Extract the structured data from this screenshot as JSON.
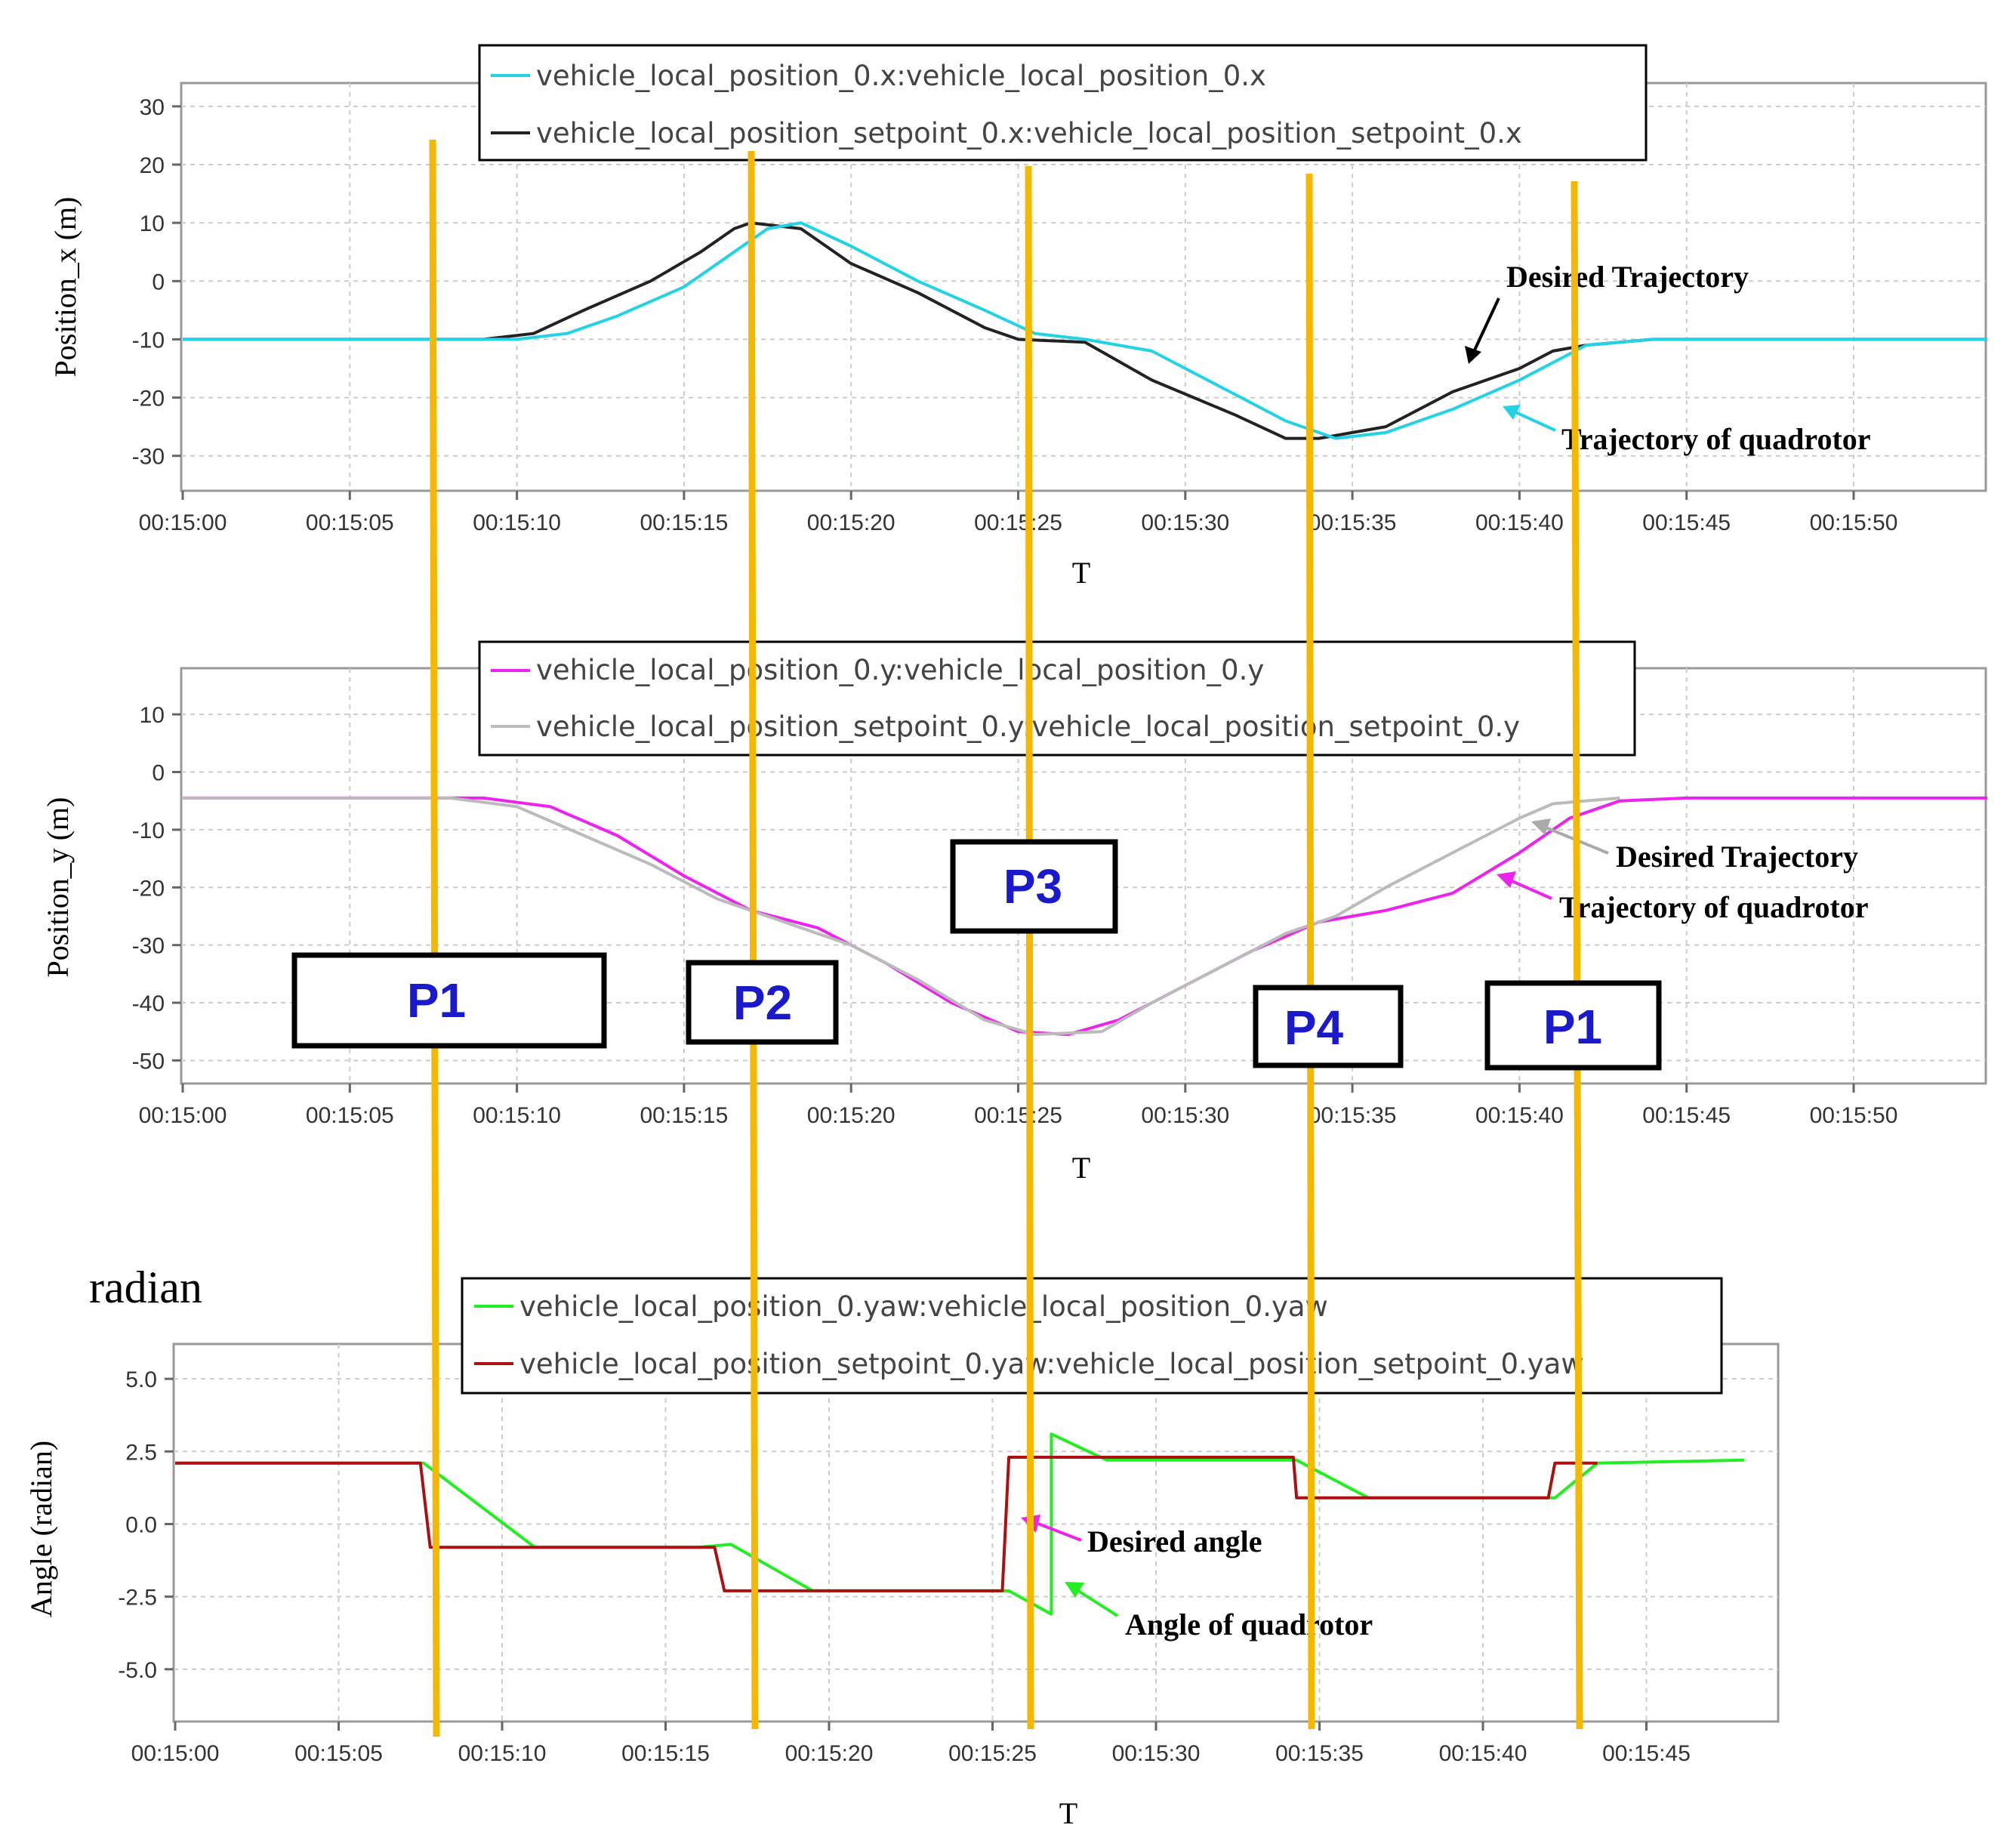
{
  "chart_data": [
    {
      "type": "line",
      "title": "",
      "xlabel": "T",
      "ylabel": "Position_x (m)",
      "ylim": [
        -36,
        34
      ],
      "xlim": [
        0,
        54
      ],
      "yticks": [
        30,
        20,
        10,
        0,
        -10,
        -20,
        -30
      ],
      "xtick_labels": [
        "00:15:00",
        "00:15:05",
        "00:15:10",
        "00:15:15",
        "00:15:20",
        "00:15:25",
        "00:15:30",
        "00:15:35",
        "00:15:40",
        "00:15:45",
        "00:15:50"
      ],
      "series": [
        {
          "name": "vehicle_local_position_setpoint_0.x:vehicle_local_position_setpoint_0.x",
          "color": "#222222",
          "x": [
            0,
            9,
            10.5,
            12,
            14,
            15.5,
            16.5,
            17,
            18.5,
            20,
            22,
            24,
            25,
            27,
            29,
            31.5,
            33,
            34,
            35,
            36,
            38,
            40,
            41,
            42,
            44,
            48,
            54
          ],
          "y": [
            -10,
            -10,
            -9,
            -5,
            0,
            5,
            9,
            10,
            9,
            3,
            -2,
            -8,
            -10,
            -10.5,
            -17,
            -23,
            -27,
            -27,
            -26,
            -25,
            -19,
            -15,
            -12,
            -11,
            -10,
            -10,
            -10
          ]
        },
        {
          "name": "vehicle_local_position_0.x:vehicle_local_position_0.x",
          "color": "#22d3e6",
          "x": [
            0,
            10,
            11.5,
            13,
            15,
            16.5,
            17.5,
            18.5,
            20,
            22,
            24,
            25.5,
            27,
            29,
            31,
            33,
            34.5,
            36,
            38,
            40,
            42,
            44,
            54
          ],
          "y": [
            -10,
            -10,
            -9,
            -6,
            -1,
            5,
            9,
            10,
            6,
            0,
            -5,
            -9,
            -10,
            -12,
            -18,
            -24,
            -27,
            -26,
            -22,
            -17,
            -11,
            -10,
            -10
          ]
        }
      ]
    },
    {
      "type": "line",
      "title": "",
      "xlabel": "T",
      "ylabel": "Position_y (m)",
      "ylim": [
        -54,
        18
      ],
      "xlim": [
        0,
        54
      ],
      "yticks": [
        10,
        0,
        -10,
        -20,
        -30,
        -40,
        -50
      ],
      "xtick_labels": [
        "00:15:00",
        "00:15:05",
        "00:15:10",
        "00:15:15",
        "00:15:20",
        "00:15:25",
        "00:15:30",
        "00:15:35",
        "00:15:40",
        "00:15:45",
        "00:15:50"
      ],
      "series": [
        {
          "name": "vehicle_local_position_0.y:vehicle_local_position_0.y",
          "color": "#ee22ee",
          "x": [
            0,
            8,
            9,
            11,
            13,
            15,
            17,
            19,
            21,
            23,
            25,
            26.5,
            28,
            30,
            32,
            34,
            36,
            38,
            40,
            41.5,
            43,
            45,
            54
          ],
          "y": [
            -4.5,
            -4.5,
            -4.5,
            -6,
            -11,
            -18,
            -24,
            -27,
            -33,
            -40,
            -45,
            -45.5,
            -43,
            -37,
            -31,
            -26,
            -24,
            -21,
            -14,
            -8,
            -5,
            -4.5,
            -4.5
          ]
        },
        {
          "name": "vehicle_local_position_setpoint_0.y:vehicle_local_position_setpoint_0.y",
          "color": "#bbbbbb",
          "x": [
            0,
            8,
            10,
            12,
            14,
            16,
            18,
            20,
            22,
            24,
            25.5,
            27.5,
            29,
            31,
            33,
            34.5,
            36,
            38,
            40,
            41,
            43
          ],
          "y": [
            -4.5,
            -4.5,
            -6,
            -11,
            -16,
            -22,
            -26,
            -30,
            -36,
            -43,
            -45.5,
            -45,
            -40,
            -34,
            -28,
            -25,
            -20,
            -14,
            -8,
            -5.5,
            -4.5
          ]
        }
      ]
    },
    {
      "type": "line",
      "title": "",
      "xlabel": "T",
      "ylabel": "Angle (radian)",
      "ylim": [
        -6.8,
        6.2
      ],
      "xlim": [
        0,
        48.5
      ],
      "yticks": [
        5.0,
        2.5,
        0.0,
        -2.5,
        -5.0
      ],
      "xtick_labels": [
        "00:15:00",
        "00:15:05",
        "00:15:10",
        "00:15:15",
        "00:15:20",
        "00:15:25",
        "00:15:30",
        "00:15:35",
        "00:15:40",
        "00:15:45"
      ],
      "series": [
        {
          "name": "vehicle_local_position_0.yaw:vehicle_local_position_0.yaw",
          "color": "#22ee22",
          "x": [
            0,
            7.6,
            11,
            16,
            17,
            19.5,
            25.5,
            26.8,
            26.8,
            28.5,
            34.3,
            36.5,
            42.2,
            43.5,
            48
          ],
          "y": [
            2.1,
            2.1,
            -0.8,
            -0.8,
            -0.7,
            -2.3,
            -2.3,
            -3.1,
            3.1,
            2.2,
            2.2,
            0.9,
            0.9,
            2.1,
            2.2
          ]
        },
        {
          "name": "vehicle_local_position_setpoint_0.yaw:vehicle_local_position_setpoint_0.yaw",
          "color": "#aa1111",
          "x": [
            0,
            7.5,
            7.8,
            16.5,
            16.8,
            19.5,
            25.3,
            25.5,
            34.2,
            34.3,
            36.5,
            42.0,
            42.2,
            43.5
          ],
          "y": [
            2.1,
            2.1,
            -0.8,
            -0.8,
            -2.3,
            -2.3,
            -2.3,
            2.3,
            2.3,
            0.9,
            0.9,
            0.9,
            2.1,
            2.1
          ]
        }
      ]
    }
  ],
  "legend1": {
    "line1": "vehicle_local_position_0.x:vehicle_local_position_0.x",
    "line2": "vehicle_local_position_setpoint_0.x:vehicle_local_position_setpoint_0.x"
  },
  "legend2": {
    "line1": "vehicle_local_position_0.y:vehicle_local_position_0.y",
    "line2": "vehicle_local_position_setpoint_0.y:vehicle_local_position_setpoint_0.y"
  },
  "legend3": {
    "line1": "vehicle_local_position_0.yaw:vehicle_local_position_0.yaw",
    "line2": "vehicle_local_position_setpoint_0.yaw:vehicle_local_position_setpoint_0.yaw"
  },
  "annotations": {
    "desired_traj_1": "Desired Trajectory",
    "quad_traj_1": "Trajectory of quadrotor",
    "desired_traj_2": "Desired Trajectory",
    "quad_traj_2": "Trajectory of quadrotor",
    "desired_angle": "Desired angle",
    "angle_quad": "Angle of quadrotor",
    "radian_label": "radian"
  },
  "phase_labels": {
    "p1_left": "P1",
    "p2": "P2",
    "p3": "P3",
    "p4": "P4",
    "p1_right": "P1"
  },
  "phase_marker_color": "#f5b800"
}
